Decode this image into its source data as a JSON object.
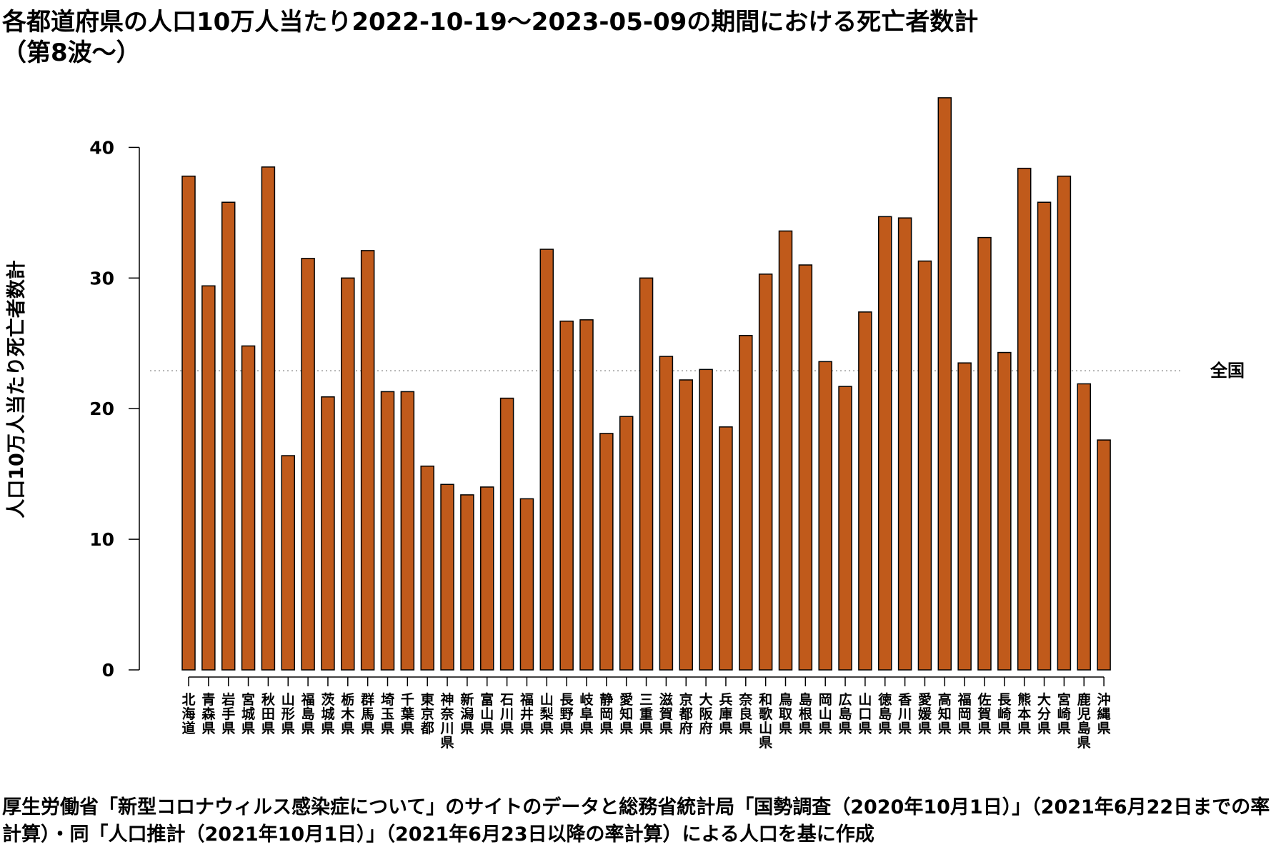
{
  "chart_data": {
    "type": "bar",
    "title": "各都道府県の人口10万人当たり2022-10-19〜2023-05-09の期間における死亡者数計\n（第8波〜）",
    "xlabel": "",
    "ylabel": "人口10万人当たり死亡者数計",
    "ylim": [
      0,
      44
    ],
    "yticks": [
      0,
      10,
      20,
      30,
      40
    ],
    "grid": false,
    "bar_color": "#c05a1b",
    "categories": [
      "北海道",
      "青森県",
      "岩手県",
      "宮城県",
      "秋田県",
      "山形県",
      "福島県",
      "茨城県",
      "栃木県",
      "群馬県",
      "埼玉県",
      "千葉県",
      "東京都",
      "神奈川県",
      "新潟県",
      "富山県",
      "石川県",
      "福井県",
      "山梨県",
      "長野県",
      "岐阜県",
      "静岡県",
      "愛知県",
      "三重県",
      "滋賀県",
      "京都府",
      "大阪府",
      "兵庫県",
      "奈良県",
      "和歌山県",
      "鳥取県",
      "島根県",
      "岡山県",
      "広島県",
      "山口県",
      "徳島県",
      "香川県",
      "愛媛県",
      "高知県",
      "福岡県",
      "佐賀県",
      "長崎県",
      "熊本県",
      "大分県",
      "宮崎県",
      "鹿児島県",
      "沖縄県"
    ],
    "values": [
      37.8,
      29.4,
      35.8,
      24.8,
      38.5,
      16.4,
      31.5,
      20.9,
      30.0,
      32.1,
      21.3,
      21.3,
      15.6,
      14.2,
      13.4,
      14.0,
      20.8,
      13.1,
      32.2,
      26.7,
      26.8,
      18.1,
      19.4,
      30.0,
      24.0,
      22.2,
      23.0,
      18.6,
      25.6,
      30.3,
      33.6,
      31.0,
      23.6,
      21.7,
      27.4,
      34.7,
      34.6,
      31.3,
      43.8,
      23.5,
      33.1,
      24.3,
      38.4,
      35.8,
      37.8,
      21.9,
      17.6
    ],
    "reference_line": {
      "label": "全国",
      "value": 22.9
    }
  },
  "source_note": "厚生労働省「新型コロナウィルス感染症について」のサイトのデータと総務省統計局「国勢調査（2020年10月1日）」（2021年6月22日までの率計算）・同「人口推計（2021年10月1日）」（2021年6月23日以降の率計算）による人口を基に作成"
}
